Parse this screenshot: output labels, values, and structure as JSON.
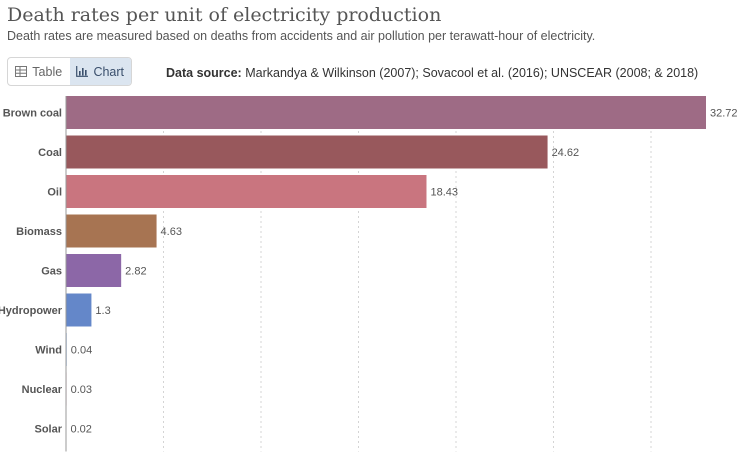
{
  "header": {
    "title": "Death rates per unit of electricity production",
    "subtitle": "Death rates are measured based on deaths from accidents and air pollution per terawatt-hour of electricity.",
    "source_label": "Data source:",
    "source_text": "Markandya & Wilkinson (2007); Sovacool et al. (2016); UNSCEAR (2008; & 2018)"
  },
  "toggle": {
    "table_label": "Table",
    "chart_label": "Chart",
    "table_icon": "table-icon",
    "chart_icon": "chart-icon",
    "active": "chart"
  },
  "chart_data": {
    "type": "bar",
    "orientation": "horizontal",
    "title": "Death rates per unit of electricity production",
    "subtitle": "Death rates are measured based on deaths from accidents and air pollution per terawatt-hour of electricity.",
    "categories": [
      "Brown coal",
      "Coal",
      "Oil",
      "Biomass",
      "Gas",
      "Hydropower",
      "Wind",
      "Nuclear",
      "Solar"
    ],
    "values": [
      32.72,
      24.62,
      18.43,
      4.63,
      2.82,
      1.3,
      0.04,
      0.03,
      0.02
    ],
    "value_labels": [
      "32.72",
      "24.62",
      "18.43",
      "4.63",
      "2.82",
      "1.3",
      "0.04",
      "0.03",
      "0.02"
    ],
    "colors": [
      "#9e6b85",
      "#98585c",
      "#c9757f",
      "#a77452",
      "#8c67a7",
      "#6487c9",
      "#9fbce6",
      "#d9a8b5",
      "#e3c37e"
    ],
    "xlim": [
      0,
      32.72
    ],
    "grid": true,
    "xlabel": "",
    "ylabel": ""
  }
}
